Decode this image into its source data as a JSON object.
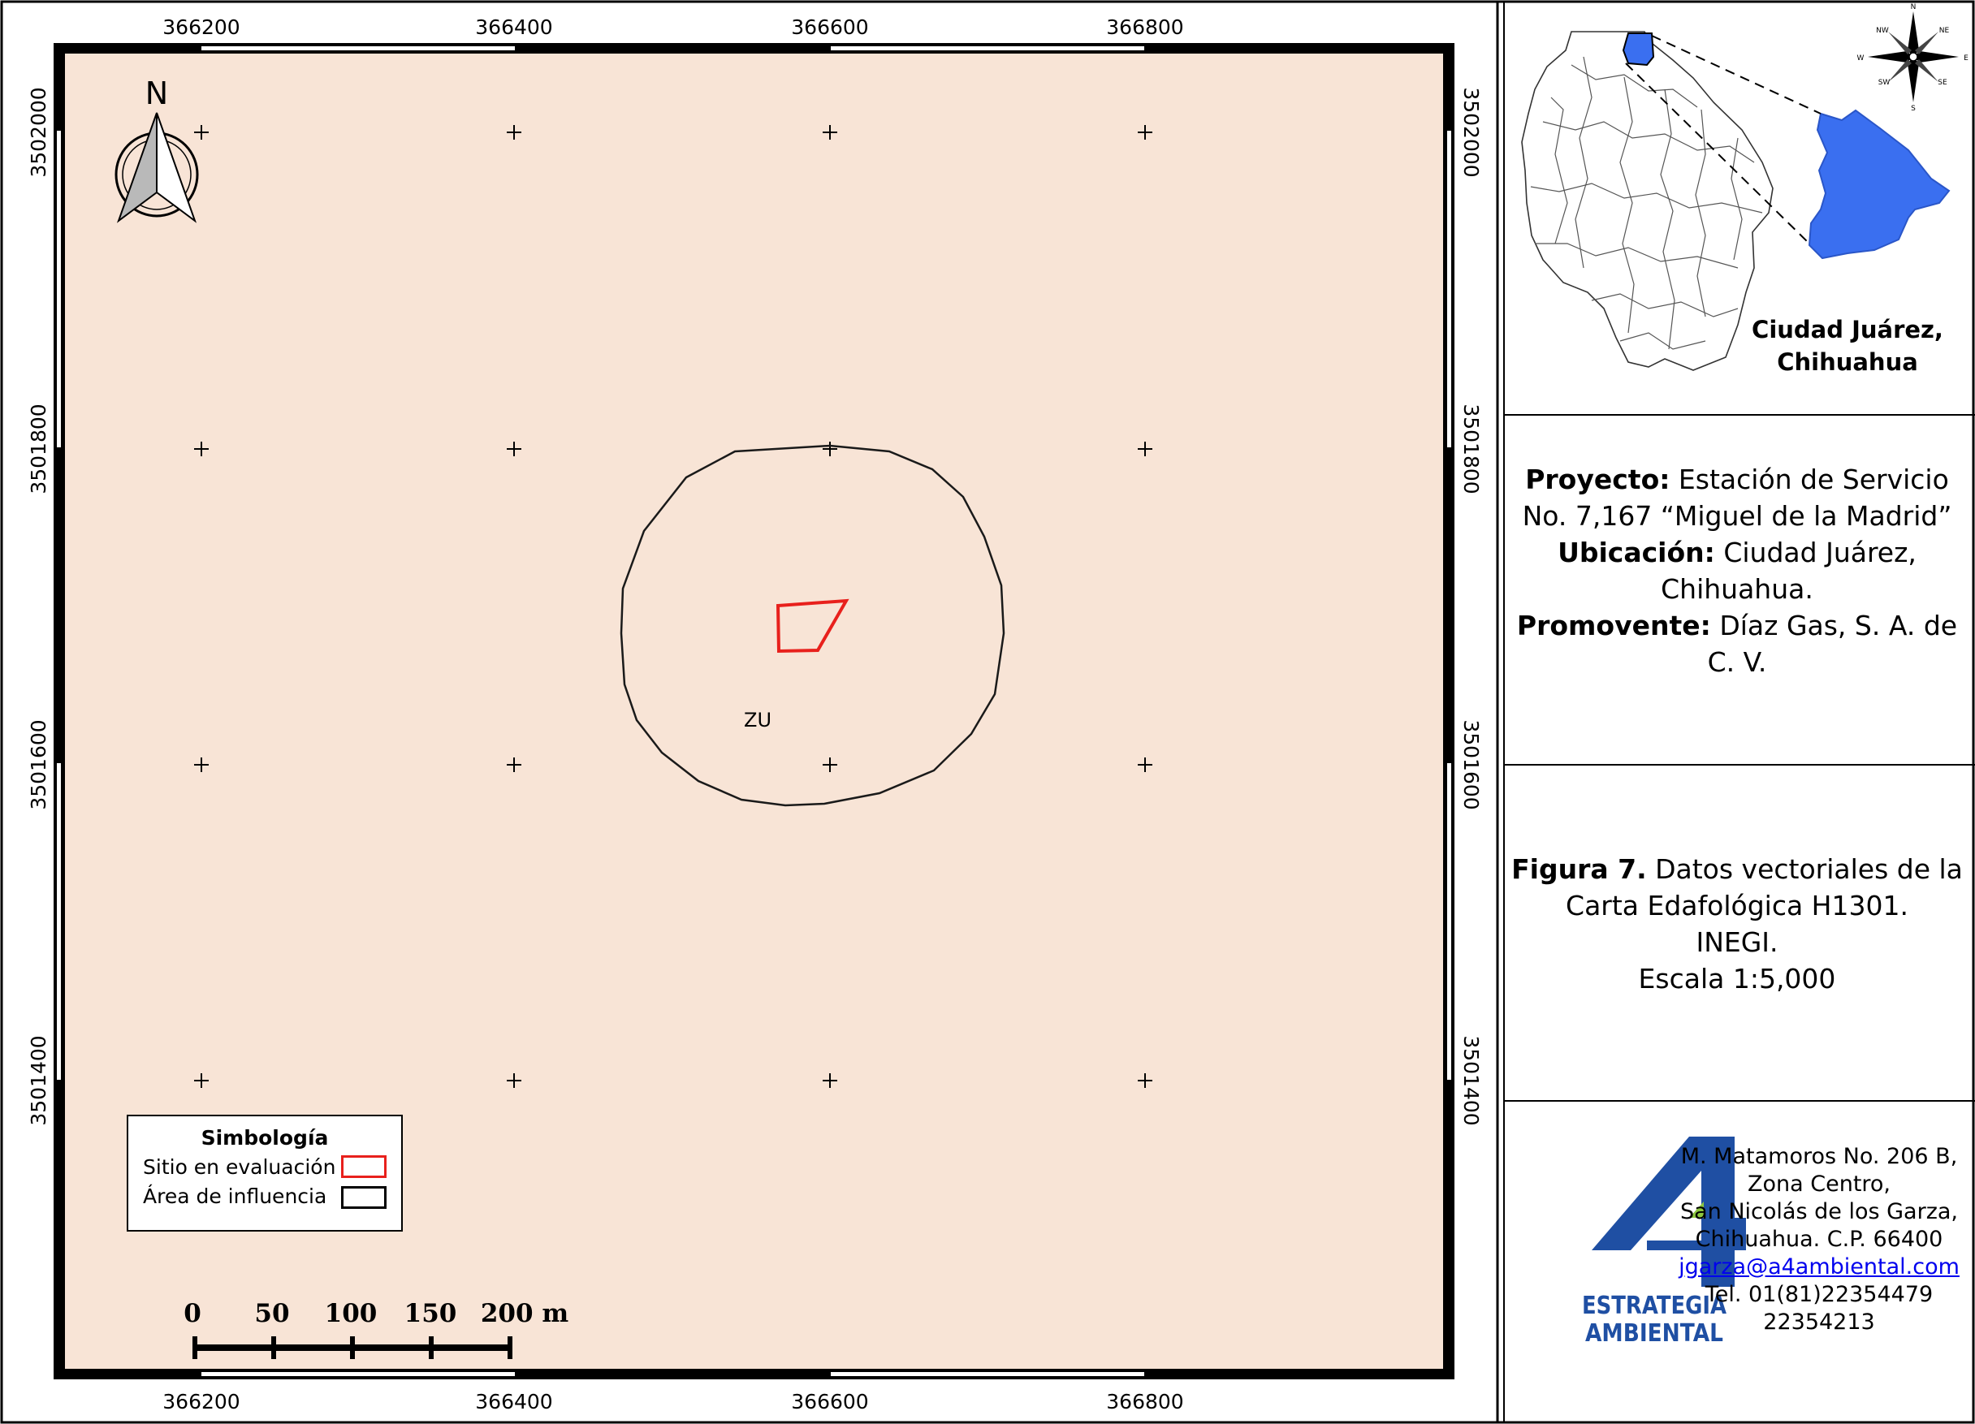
{
  "map": {
    "north_label": "N",
    "soil_label": "ZU",
    "x_ticks": [
      "366200",
      "366400",
      "366600",
      "366800"
    ],
    "y_ticks": [
      "3502000",
      "3501800",
      "3501600",
      "3501400"
    ],
    "scale_labels": [
      "0",
      "50",
      "100",
      "150",
      "200 m"
    ],
    "colors": {
      "background": "#f8e4d6",
      "site_outline": "#e8201c",
      "influence_outline": "#1a1a1a"
    }
  },
  "legend": {
    "title": "Simbología",
    "items": [
      {
        "label": "Sitio en evaluación",
        "color": "#e8201c"
      },
      {
        "label": "Área de influencia",
        "color": "#000000"
      }
    ]
  },
  "location": {
    "label_line1": "Ciudad Juárez,",
    "label_line2": "Chihuahua",
    "compass": [
      "N",
      "NE",
      "E",
      "SE",
      "S",
      "SW",
      "W",
      "NW"
    ],
    "highlight_color": "#3a6ff0"
  },
  "project": {
    "proyecto_label": "Proyecto:",
    "proyecto_value": " Estación de Servicio No. 7,167 “Miguel de la Madrid”",
    "ubicacion_label": "Ubicación:",
    "ubicacion_value": " Ciudad Juárez, Chihuahua.",
    "promovente_label": "Promovente:",
    "promovente_value": " Díaz Gas, S. A. de C. V."
  },
  "figure": {
    "label": "Figura 7.",
    "line1": " Datos vectoriales de la Carta Edafológica H1301.",
    "line2": "INEGI.",
    "line3": "Escala 1:5,000"
  },
  "company": {
    "logo_letter": "A",
    "logo_line1": "ESTRATEGIA",
    "logo_line2": "AMBIENTAL",
    "logo_color": "#1f4fa3",
    "logo_accent": "#8cc63f",
    "address1": "M. Matamoros No. 206 B,",
    "address2": "Zona Centro,",
    "address3": "San Nicolás de los Garza,",
    "address4": "Chihuahua. C.P. 66400",
    "email": "jgarza@a4ambiental.com",
    "phone1": "Tel. 01(81)22354479",
    "phone2": "22354213"
  }
}
